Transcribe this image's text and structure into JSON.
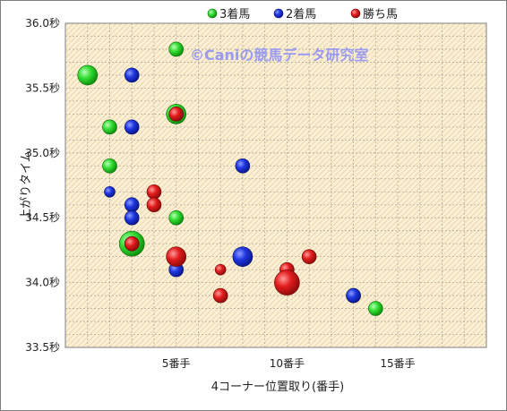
{
  "chart_data": {
    "type": "scatter",
    "xlabel": "4コーナー位置取り(番手)",
    "ylabel": "上がりタイム",
    "xlim": [
      0,
      19
    ],
    "ylim": [
      33.5,
      36.0
    ],
    "x_ticks": [
      {
        "value": 5,
        "label": "5番手"
      },
      {
        "value": 10,
        "label": "10番手"
      },
      {
        "value": 15,
        "label": "15番手"
      }
    ],
    "y_ticks": [
      {
        "value": 36.0,
        "label": "36.0秒"
      },
      {
        "value": 35.5,
        "label": "35.5秒"
      },
      {
        "value": 35.0,
        "label": "35.0秒"
      },
      {
        "value": 34.5,
        "label": "34.5秒"
      },
      {
        "value": 34.0,
        "label": "34.0秒"
      },
      {
        "value": 33.5,
        "label": "33.5秒"
      }
    ],
    "grid": true,
    "legend_position": "top",
    "watermark": "©Caniの競馬データ研究室",
    "series": [
      {
        "name": "3着馬",
        "color": "#22cc22",
        "points": [
          {
            "x": 1,
            "y": 35.6,
            "size": 2
          },
          {
            "x": 5,
            "y": 35.8,
            "size": 1
          },
          {
            "x": 5,
            "y": 35.3,
            "size": 2
          },
          {
            "x": 2,
            "y": 35.2,
            "size": 1
          },
          {
            "x": 2,
            "y": 34.9,
            "size": 1
          },
          {
            "x": 5,
            "y": 34.5,
            "size": 1
          },
          {
            "x": 3,
            "y": 34.3,
            "size": 3
          },
          {
            "x": 13,
            "y": 33.9,
            "size": 1
          },
          {
            "x": 14,
            "y": 33.8,
            "size": 1
          }
        ]
      },
      {
        "name": "2着馬",
        "color": "#1a2fd0",
        "points": [
          {
            "x": 3,
            "y": 35.6,
            "size": 1
          },
          {
            "x": 3,
            "y": 35.2,
            "size": 1
          },
          {
            "x": 8,
            "y": 34.9,
            "size": 1
          },
          {
            "x": 2,
            "y": 34.7,
            "size": 0
          },
          {
            "x": 3,
            "y": 34.6,
            "size": 1
          },
          {
            "x": 3,
            "y": 34.5,
            "size": 1
          },
          {
            "x": 3,
            "y": 34.3,
            "size": 1
          },
          {
            "x": 8,
            "y": 34.2,
            "size": 2
          },
          {
            "x": 5,
            "y": 34.1,
            "size": 1
          },
          {
            "x": 13,
            "y": 33.9,
            "size": 1
          }
        ]
      },
      {
        "name": "勝ち馬",
        "color": "#e01818",
        "points": [
          {
            "x": 5,
            "y": 35.3,
            "size": 1
          },
          {
            "x": 4,
            "y": 34.7,
            "size": 1
          },
          {
            "x": 4,
            "y": 34.6,
            "size": 1
          },
          {
            "x": 3,
            "y": 34.3,
            "size": 1
          },
          {
            "x": 5,
            "y": 34.2,
            "size": 2
          },
          {
            "x": 11,
            "y": 34.2,
            "size": 1
          },
          {
            "x": 7,
            "y": 34.1,
            "size": 0
          },
          {
            "x": 10,
            "y": 34.1,
            "size": 1
          },
          {
            "x": 10,
            "y": 34.0,
            "size": 3
          },
          {
            "x": 7,
            "y": 33.9,
            "size": 1
          }
        ]
      }
    ]
  }
}
